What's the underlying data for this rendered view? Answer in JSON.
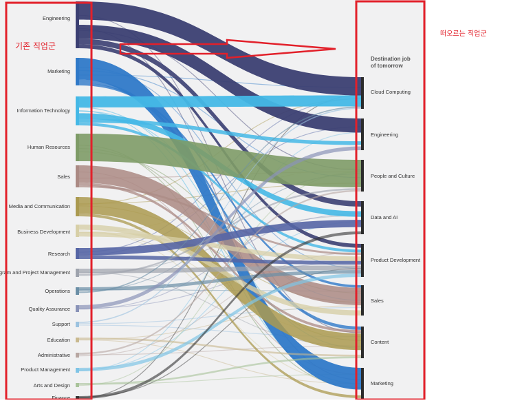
{
  "annotations": {
    "left_label": "기존 직업군",
    "right_label": "떠오르는 직업군"
  },
  "diagram": {
    "destination_header": [
      "Destination job",
      "of tomorrow"
    ],
    "sources": [
      {
        "label": "Engineering",
        "color": "#3b3f72"
      },
      {
        "label": "Marketing",
        "color": "#2f79c8"
      },
      {
        "label": "Information Technology",
        "color": "#45b8e6"
      },
      {
        "label": "Human Resources",
        "color": "#7e9b67"
      },
      {
        "label": "Sales",
        "color": "#ab8a84"
      },
      {
        "label": "Media and Communication",
        "color": "#ab9a50"
      },
      {
        "label": "Business Development",
        "color": "#d7cfa7"
      },
      {
        "label": "Research",
        "color": "#5565a5"
      },
      {
        "label": "Program and Project Management",
        "color": "#9ea3ad"
      },
      {
        "label": "Operations",
        "color": "#6b8fa6"
      },
      {
        "label": "Quality Assurance",
        "color": "#8a93b8"
      },
      {
        "label": "Support",
        "color": "#9bc2df"
      },
      {
        "label": "Education",
        "color": "#c9b98f"
      },
      {
        "label": "Administrative",
        "color": "#b8a7a2"
      },
      {
        "label": "Product Management",
        "color": "#7fc4e6"
      },
      {
        "label": "Arts and Design",
        "color": "#a9c39a"
      },
      {
        "label": "Finance",
        "color": "#333333"
      }
    ],
    "destinations": [
      {
        "label": "Cloud Computing"
      },
      {
        "label": "Engineering"
      },
      {
        "label": "People and Culture"
      },
      {
        "label": "Data and AI"
      },
      {
        "label": "Product Development"
      },
      {
        "label": "Sales"
      },
      {
        "label": "Content"
      },
      {
        "label": "Marketing"
      }
    ],
    "flows": [
      {
        "from": 0,
        "to": 0,
        "weight": 30,
        "opacity": 0.95
      },
      {
        "from": 0,
        "to": 1,
        "weight": 18,
        "opacity": 0.95
      },
      {
        "from": 0,
        "to": 3,
        "weight": 7,
        "opacity": 0.9
      },
      {
        "from": 0,
        "to": 4,
        "weight": 5,
        "opacity": 0.9
      },
      {
        "from": 1,
        "to": 7,
        "weight": 26,
        "opacity": 0.95
      },
      {
        "from": 1,
        "to": 6,
        "weight": 4,
        "opacity": 0.8
      },
      {
        "from": 1,
        "to": 5,
        "weight": 3,
        "opacity": 0.8
      },
      {
        "from": 2,
        "to": 0,
        "weight": 18,
        "opacity": 0.95
      },
      {
        "from": 2,
        "to": 3,
        "weight": 6,
        "opacity": 0.9
      },
      {
        "from": 2,
        "to": 1,
        "weight": 4,
        "opacity": 0.85
      },
      {
        "from": 2,
        "to": 4,
        "weight": 3,
        "opacity": 0.8
      },
      {
        "from": 3,
        "to": 2,
        "weight": 34,
        "opacity": 0.9
      },
      {
        "from": 4,
        "to": 5,
        "weight": 26,
        "opacity": 0.85
      },
      {
        "from": 4,
        "to": 6,
        "weight": 4,
        "opacity": 0.75
      },
      {
        "from": 4,
        "to": 4,
        "weight": 3,
        "opacity": 0.7
      },
      {
        "from": 5,
        "to": 6,
        "weight": 24,
        "opacity": 0.85
      },
      {
        "from": 5,
        "to": 7,
        "weight": 4,
        "opacity": 0.75
      },
      {
        "from": 6,
        "to": 5,
        "weight": 6,
        "opacity": 0.8
      },
      {
        "from": 6,
        "to": 4,
        "weight": 4,
        "opacity": 0.75
      },
      {
        "from": 7,
        "to": 3,
        "weight": 8,
        "opacity": 0.9
      },
      {
        "from": 7,
        "to": 4,
        "weight": 4,
        "opacity": 0.85
      },
      {
        "from": 8,
        "to": 4,
        "weight": 4,
        "opacity": 0.7
      },
      {
        "from": 8,
        "to": 2,
        "weight": 2,
        "opacity": 0.6
      },
      {
        "from": 9,
        "to": 4,
        "weight": 3,
        "opacity": 0.7
      },
      {
        "from": 9,
        "to": 0,
        "weight": 2,
        "opacity": 0.6
      },
      {
        "from": 10,
        "to": 1,
        "weight": 3,
        "opacity": 0.7
      },
      {
        "from": 11,
        "to": 0,
        "weight": 2,
        "opacity": 0.6
      },
      {
        "from": 12,
        "to": 6,
        "weight": 2,
        "opacity": 0.6
      },
      {
        "from": 13,
        "to": 2,
        "weight": 2,
        "opacity": 0.6
      },
      {
        "from": 14,
        "to": 4,
        "weight": 3,
        "opacity": 0.7
      },
      {
        "from": 15,
        "to": 6,
        "weight": 2,
        "opacity": 0.6
      },
      {
        "from": 16,
        "to": 3,
        "weight": 2,
        "opacity": 0.6
      }
    ],
    "thin_flows": [
      {
        "from": 0,
        "to": 6
      },
      {
        "from": 0,
        "to": 7
      },
      {
        "from": 1,
        "to": 2
      },
      {
        "from": 1,
        "to": 4
      },
      {
        "from": 1,
        "to": 0
      },
      {
        "from": 2,
        "to": 5
      },
      {
        "from": 2,
        "to": 6
      },
      {
        "from": 3,
        "to": 5
      },
      {
        "from": 3,
        "to": 6
      },
      {
        "from": 3,
        "to": 7
      },
      {
        "from": 4,
        "to": 7
      },
      {
        "from": 4,
        "to": 2
      },
      {
        "from": 5,
        "to": 5
      },
      {
        "from": 5,
        "to": 2
      },
      {
        "from": 6,
        "to": 6
      },
      {
        "from": 6,
        "to": 7
      },
      {
        "from": 7,
        "to": 0
      },
      {
        "from": 7,
        "to": 1
      },
      {
        "from": 8,
        "to": 3
      },
      {
        "from": 8,
        "to": 6
      },
      {
        "from": 9,
        "to": 5
      },
      {
        "from": 10,
        "to": 3
      },
      {
        "from": 10,
        "to": 4
      },
      {
        "from": 11,
        "to": 5
      },
      {
        "from": 11,
        "to": 6
      },
      {
        "from": 12,
        "to": 7
      },
      {
        "from": 12,
        "to": 5
      },
      {
        "from": 13,
        "to": 4
      },
      {
        "from": 14,
        "to": 1
      },
      {
        "from": 14,
        "to": 3
      },
      {
        "from": 15,
        "to": 7
      },
      {
        "from": 15,
        "to": 2
      },
      {
        "from": 16,
        "to": 0
      },
      {
        "from": 16,
        "to": 4
      },
      {
        "from": 0,
        "to": 2
      },
      {
        "from": 2,
        "to": 7
      },
      {
        "from": 5,
        "to": 0
      },
      {
        "from": 6,
        "to": 2
      },
      {
        "from": 9,
        "to": 2
      },
      {
        "from": 13,
        "to": 6
      }
    ],
    "annotation_color": "#e2202a"
  }
}
